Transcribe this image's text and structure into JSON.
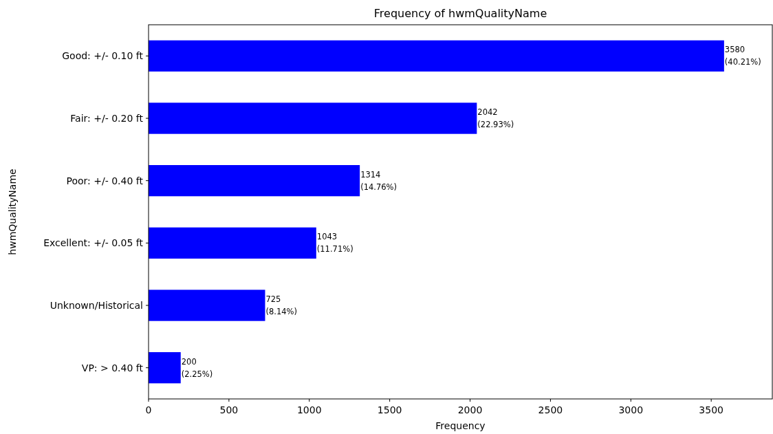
{
  "chart_data": {
    "type": "bar",
    "orientation": "horizontal",
    "title": "Frequency of hwmQualityName",
    "xlabel": "Frequency",
    "ylabel": "hwmQualityName",
    "categories": [
      "Good: +/- 0.10 ft",
      "Fair: +/- 0.20 ft",
      "Poor: +/- 0.40 ft",
      "Excellent: +/- 0.05 ft",
      "Unknown/Historical",
      "VP: > 0.40 ft"
    ],
    "values": [
      3580,
      2042,
      1314,
      1043,
      725,
      200
    ],
    "value_labels": [
      "3580\n(40.21%)",
      "2042\n(22.93%)",
      "1314\n(14.76%)",
      "1043\n(11.71%)",
      "725\n(8.14%)",
      "200\n(2.25%)"
    ],
    "color": "#0000ff",
    "xlim": [
      0,
      3880
    ],
    "xticks": [
      0,
      500,
      1000,
      1500,
      2000,
      2500,
      3000,
      3500
    ],
    "grid": false
  }
}
